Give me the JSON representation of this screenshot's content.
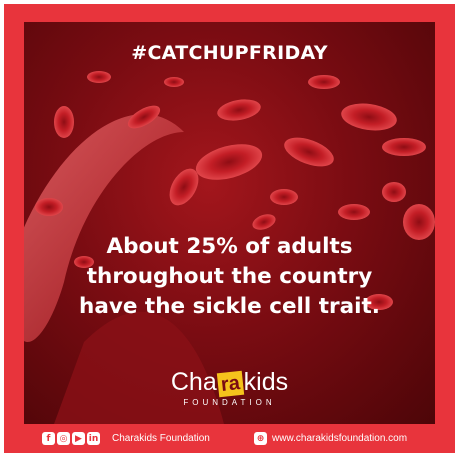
{
  "post": {
    "hashtag": "#CATCHUPFRIDAY",
    "headline_lines": [
      "About 25% of adults",
      "throughout the country",
      "have the sickle cell trait."
    ]
  },
  "logo": {
    "text_before": "Cha",
    "text_highlight": "ra",
    "text_after": "kids",
    "tagline": "FOUNDATION",
    "highlight_color": "#f5c31c"
  },
  "footer": {
    "social_icons": [
      "facebook-icon",
      "instagram-icon",
      "youtube-icon",
      "linkedin-icon"
    ],
    "social_label": "Charakids Foundation",
    "website_icon": "globe-icon",
    "website": "www.charakidsfoundation.com"
  },
  "colors": {
    "frame_red": "#e8343c",
    "panel_dark": "#7a0c12",
    "text": "#ffffff"
  }
}
